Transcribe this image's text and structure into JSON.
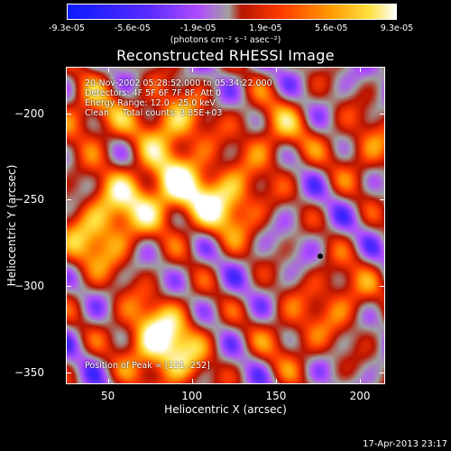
{
  "colorbar": {
    "ticks": [
      "-9.3e-05",
      "-5.6e-05",
      "-1.9e-05",
      "1.9e-05",
      "5.6e-05",
      "9.3e-05"
    ],
    "tick_values": [
      -9.3e-05,
      -5.6e-05,
      -1.9e-05,
      1.9e-05,
      5.6e-05,
      9.3e-05
    ],
    "units": "(photons cm⁻² s⁻¹ asec⁻²)"
  },
  "info": {
    "line1": "20-Nov-2002 05:28:52.000 to 05:34:22.000",
    "line2": "Detectors: 4F 5F 6F 7F 8F, Att 0",
    "line3": "Energy Range: 12.0 - 25.0 keV",
    "line4": "Clean     Total counts: 3.85E+03",
    "peak": "Position of Peak = [121,-252]"
  },
  "timestamp": "17-Apr-2013 23:17",
  "chart_data": {
    "type": "heatmap",
    "title": "Reconstructed RHESSI Image",
    "xlabel": "Heliocentric X (arcsec)",
    "ylabel": "Heliocentric Y (arcsec)",
    "xlim": [
      25,
      215
    ],
    "ylim": [
      -357,
      -173
    ],
    "xticks": [
      50,
      100,
      150,
      200
    ],
    "yticks": [
      -200,
      -250,
      -300,
      -350
    ],
    "colorscale": [
      "#0a1bff",
      "#5a2bff",
      "#b04cff",
      "#a0a0a0",
      "#b81400",
      "#ff3b00",
      "#ff9a00",
      "#ffe040",
      "#ffffff"
    ],
    "value_range": [
      -9.3e-05,
      9.3e-05
    ],
    "peak": [
      121,
      -252
    ],
    "marker": [
      176,
      -282
    ],
    "bright_sources": [
      {
        "x": 90,
        "y": -243,
        "v": 9e-05
      },
      {
        "x": 121,
        "y": -252,
        "v": 9.3e-05
      },
      {
        "x": 88,
        "y": -205,
        "v": 8e-05
      },
      {
        "x": 58,
        "y": -252,
        "v": 7.5e-05
      },
      {
        "x": 40,
        "y": -200,
        "v": 6.5e-05
      },
      {
        "x": 75,
        "y": -325,
        "v": 7e-05
      },
      {
        "x": 88,
        "y": -340,
        "v": 8.5e-05
      },
      {
        "x": 40,
        "y": -275,
        "v": 7e-05
      },
      {
        "x": 150,
        "y": -210,
        "v": 6e-05
      },
      {
        "x": 190,
        "y": -305,
        "v": 5.5e-05
      },
      {
        "x": 205,
        "y": -220,
        "v": 5e-05
      },
      {
        "x": 160,
        "y": -330,
        "v": 4.5e-05
      }
    ]
  }
}
